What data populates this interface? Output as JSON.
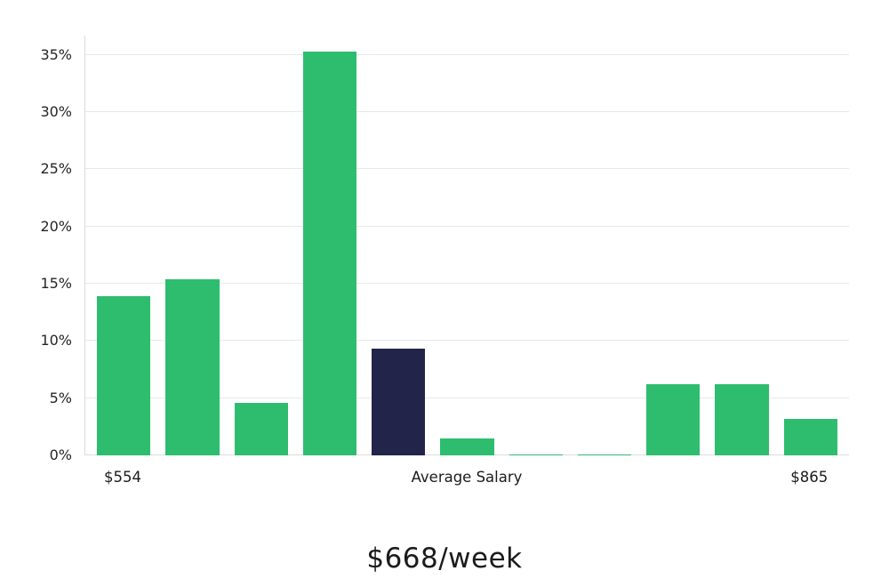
{
  "chart_data": {
    "type": "bar",
    "title": "$668/week",
    "title_position": "bottom",
    "values": [
      13.9,
      15.4,
      4.6,
      35.3,
      9.3,
      1.5,
      0.1,
      0.1,
      6.2,
      6.2,
      3.2
    ],
    "highlight_index": 4,
    "bar_color": "#2ebd6f",
    "highlight_color": "#232449",
    "ylim": [
      0,
      36.7
    ],
    "yticks": [
      0,
      5,
      10,
      15,
      20,
      25,
      30,
      35
    ],
    "ytick_suffix": "%",
    "grid": "horizontal",
    "legend": "none",
    "xlabels": [
      {
        "text": "$554",
        "position_pct": 5.0
      },
      {
        "text": "Average Salary",
        "position_pct": 50.0
      },
      {
        "text": "$865",
        "position_pct": 94.8
      }
    ]
  }
}
